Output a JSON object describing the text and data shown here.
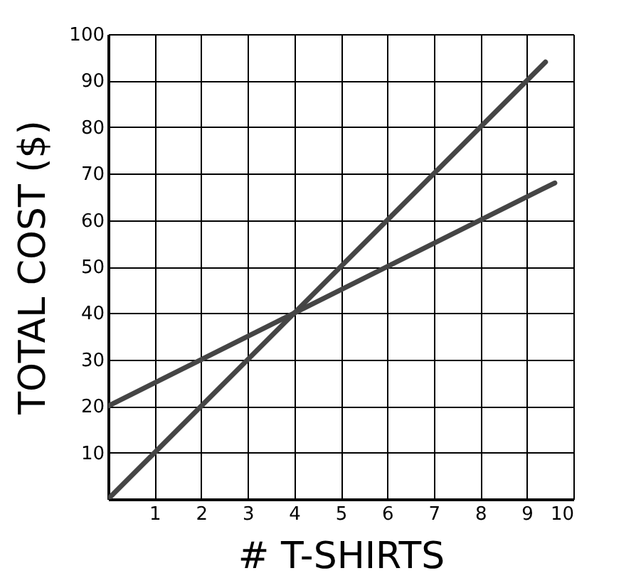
{
  "chart_data": {
    "type": "line",
    "xlabel": "# T-SHIRTS",
    "ylabel": "TOTAL COST ($)",
    "xlim": [
      0,
      10
    ],
    "ylim": [
      0,
      100
    ],
    "xticks": [
      1,
      2,
      3,
      4,
      5,
      6,
      7,
      8,
      9,
      10
    ],
    "yticks": [
      10,
      20,
      30,
      40,
      50,
      60,
      70,
      80,
      90,
      100
    ],
    "grid": true,
    "legend": false,
    "series": [
      {
        "color": "#454545",
        "x": [
          0,
          9.4
        ],
        "values": [
          0,
          94
        ]
      },
      {
        "color": "#454545",
        "x": [
          0,
          9.6
        ],
        "values": [
          20,
          68
        ]
      }
    ]
  }
}
